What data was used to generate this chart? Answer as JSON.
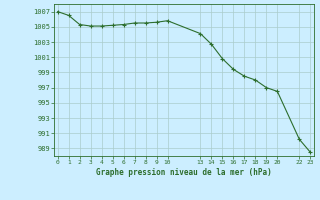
{
  "x_values": [
    0,
    1,
    2,
    3,
    4,
    5,
    6,
    7,
    8,
    9,
    10,
    13,
    14,
    15,
    16,
    17,
    18,
    19,
    20,
    22,
    23
  ],
  "y_values": [
    1007.0,
    1006.5,
    1005.3,
    1005.1,
    1005.1,
    1005.2,
    1005.3,
    1005.5,
    1005.5,
    1005.6,
    1005.8,
    1004.1,
    1002.7,
    1000.8,
    999.4,
    998.5,
    998.0,
    997.0,
    996.5,
    990.2,
    988.5
  ],
  "x_ticks": [
    0,
    1,
    2,
    3,
    4,
    5,
    6,
    7,
    8,
    9,
    10,
    13,
    14,
    15,
    16,
    17,
    18,
    19,
    20,
    22,
    23
  ],
  "x_tick_labels": [
    "0",
    "1",
    "2",
    "3",
    "4",
    "5",
    "6",
    "7",
    "8",
    "9",
    "10",
    "13",
    "14",
    "15",
    "16",
    "17",
    "18",
    "19",
    "20",
    "22",
    "23"
  ],
  "y_ticks": [
    989,
    991,
    993,
    995,
    997,
    999,
    1001,
    1003,
    1005,
    1007
  ],
  "ylim": [
    988.0,
    1008.0
  ],
  "xlim": [
    -0.3,
    23.3
  ],
  "xlabel": "Graphe pression niveau de la mer (hPa)",
  "line_color": "#2d6e2d",
  "marker_color": "#2d6e2d",
  "bg_color": "#cceeff",
  "grid_color": "#aacccc",
  "xlabel_color": "#2d6e2d",
  "tick_color": "#2d6e2d"
}
